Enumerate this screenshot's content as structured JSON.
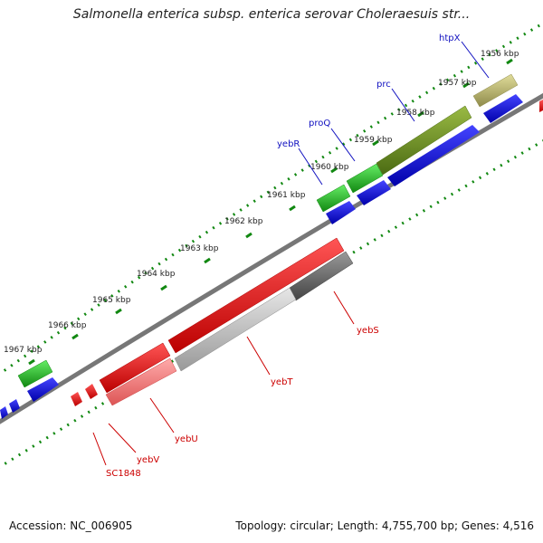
{
  "title": "Salmonella enterica subsp. enterica serovar Choleraesuis str...",
  "footer": {
    "accession": "Accession: NC_006905",
    "summary": "Topology: circular; Length: 4,755,700 bp; Genes: 4,516"
  },
  "ticks": [
    {
      "label": "1956 kbp"
    },
    {
      "label": "1957 kbp"
    },
    {
      "label": "1958 kbp"
    },
    {
      "label": "1959 kbp"
    },
    {
      "label": "1960 kbp"
    },
    {
      "label": "1961 kbp"
    },
    {
      "label": "1962 kbp"
    },
    {
      "label": "1963 kbp"
    },
    {
      "label": "1964 kbp"
    },
    {
      "label": "1965 kbp"
    },
    {
      "label": "1966 kbp"
    },
    {
      "label": "1967 kbp"
    }
  ],
  "genes_forward": [
    {
      "name": "htpX"
    },
    {
      "name": "prc"
    },
    {
      "name": "proQ"
    },
    {
      "name": "yebR"
    }
  ],
  "genes_reverse": [
    {
      "name": "yebS"
    },
    {
      "name": "yebT"
    },
    {
      "name": "yebU"
    },
    {
      "name": "yebV"
    },
    {
      "name": "SC1848"
    }
  ],
  "colors": {
    "forward_label": "#1010c0",
    "reverse_label": "#cc0000",
    "green_gene": "#22bb22",
    "olive_gene": "#6b8e23",
    "khaki_gene": "#bdb76b",
    "blue_cds": "#0000ee",
    "red_gene": "#ee1111",
    "gray_gene": "#bbbbbb",
    "backbone": "#777777",
    "dotted_track": "#118811"
  }
}
